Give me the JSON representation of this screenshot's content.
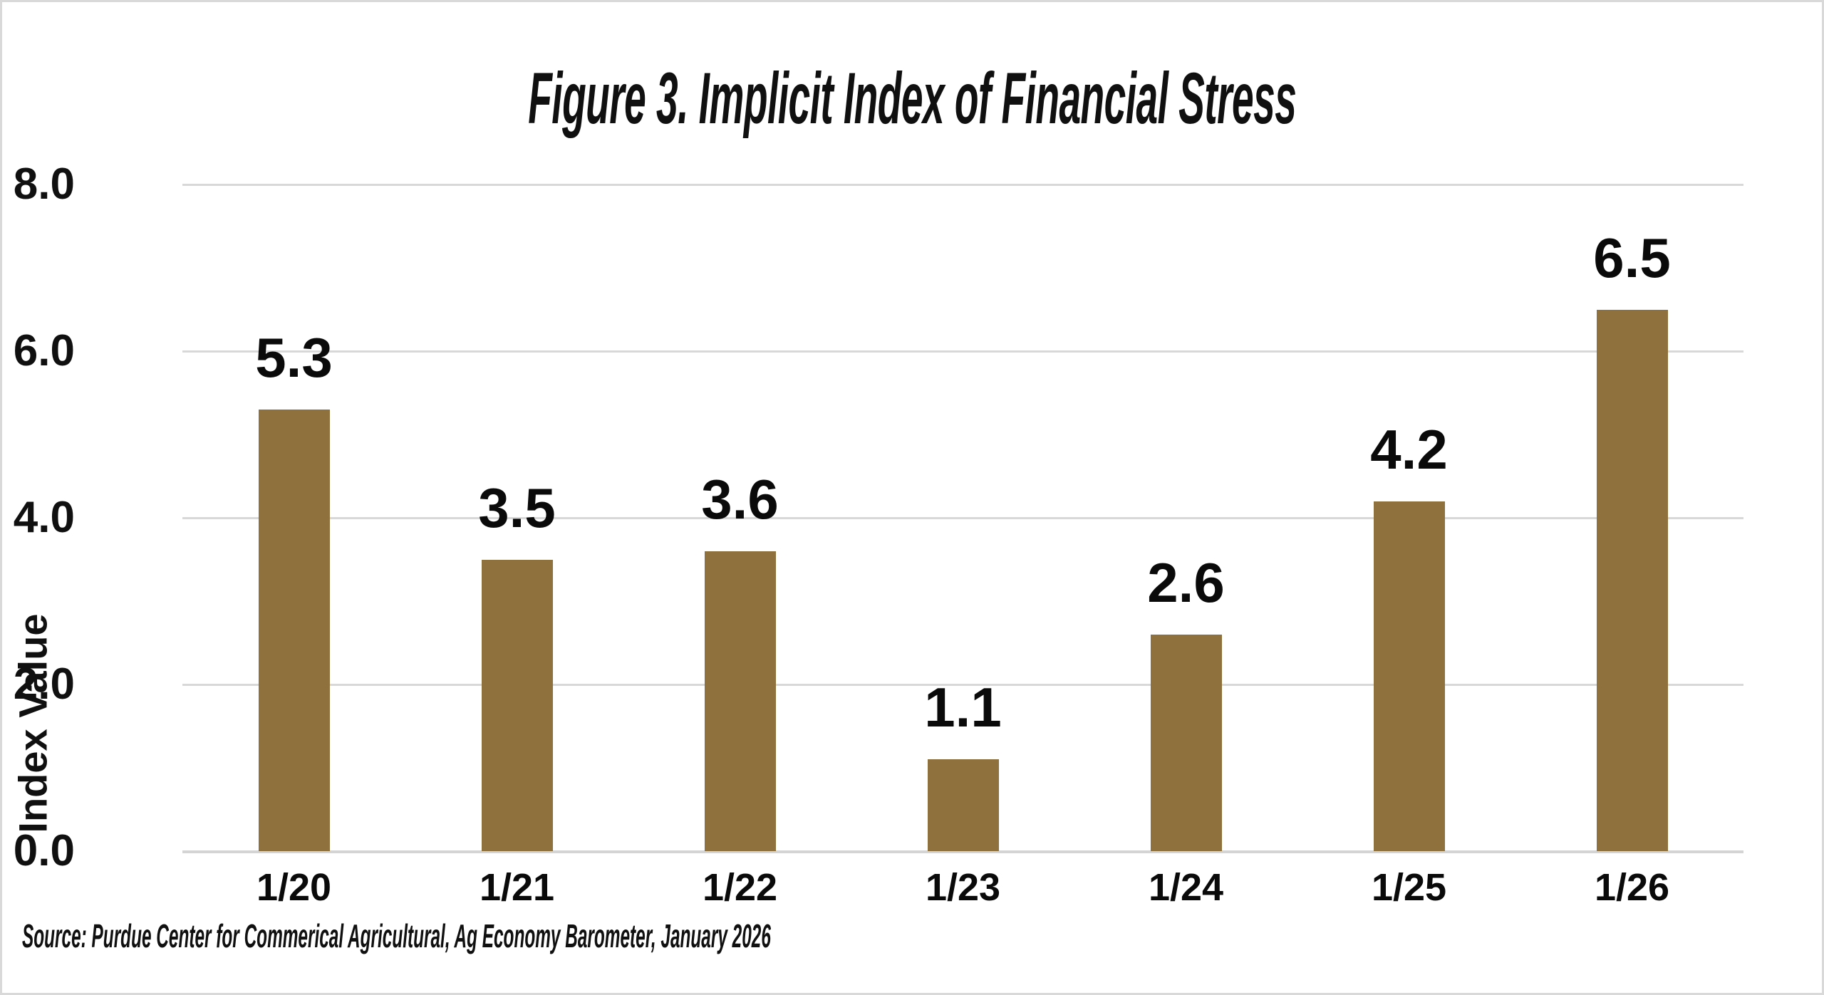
{
  "figure": {
    "title": "Figure 3.  Implicit Index of Financial Stress",
    "source": "Source: Purdue Center for Commerical Agricultural, Ag Economy Barometer, January 2026"
  },
  "chart_data": {
    "type": "bar",
    "title": "Figure 3.  Implicit Index of Financial Stress",
    "categories": [
      "1/20",
      "1/21",
      "1/22",
      "1/23",
      "1/24",
      "1/25",
      "1/26"
    ],
    "values": [
      5.3,
      3.5,
      3.6,
      1.1,
      2.6,
      4.2,
      6.5
    ],
    "data_labels": [
      "5.3",
      "3.5",
      "3.6",
      "1.1",
      "2.6",
      "4.2",
      "6.5"
    ],
    "xlabel": "",
    "ylabel": "Index Value",
    "ylim": [
      0.0,
      8.0
    ],
    "yticks": [
      0.0,
      2.0,
      4.0,
      6.0,
      8.0
    ],
    "ytick_labels": [
      "0.0",
      "2.0",
      "4.0",
      "6.0",
      "8.0"
    ],
    "grid": true,
    "legend": "none",
    "bar_color": "#8e713c",
    "gridline_color": "#d8d8d8",
    "text_color": "#0a0a0a",
    "background_color": "#ffffff",
    "source": "Source: Purdue Center for Commerical Agricultural, Ag Economy Barometer, January 2026"
  }
}
